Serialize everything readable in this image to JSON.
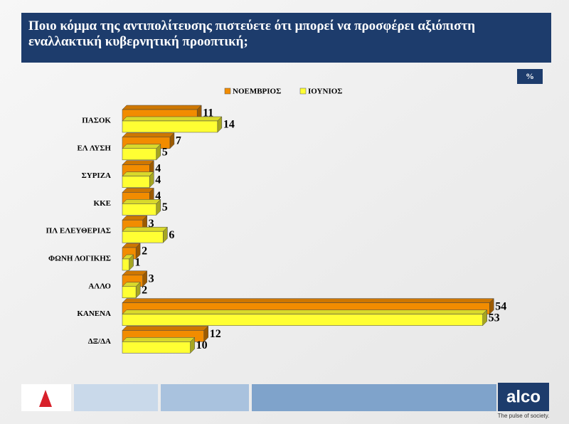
{
  "chart_data": {
    "type": "bar3d-horizontal",
    "title": "Ποιο κόμμα της αντιπολίτευσης πιστεύετε ότι μπορεί να προσφέρει αξιόπιστη εναλλακτική κυβερνητική προοπτική;",
    "unit_label": "%",
    "categories": [
      "ΠΑΣΟΚ",
      "ΕΛ ΛΥΣΗ",
      "ΣΥΡΙΖΑ",
      "ΚΚΕ",
      "ΠΛ ΕΛΕΥΘΕΡΙΑΣ",
      "ΦΩΝΗ ΛΟΓΙΚΗΣ",
      "ΑΛΛΟ",
      "ΚΑΝΕΝΑ",
      "ΔΞ/ΔΑ"
    ],
    "series": [
      {
        "name": "ΝΟΕΜΒΡΙΟΣ",
        "color": "#f28c00",
        "values": [
          11,
          7,
          4,
          4,
          3,
          2,
          3,
          54,
          12
        ]
      },
      {
        "name": "ΙΟΥΝΙΟΣ",
        "color": "#ffff33",
        "values": [
          14,
          5,
          4,
          5,
          6,
          1,
          2,
          53,
          10
        ]
      }
    ]
  },
  "footer": {
    "brand": "alco",
    "tagline": "The pulse of society."
  }
}
